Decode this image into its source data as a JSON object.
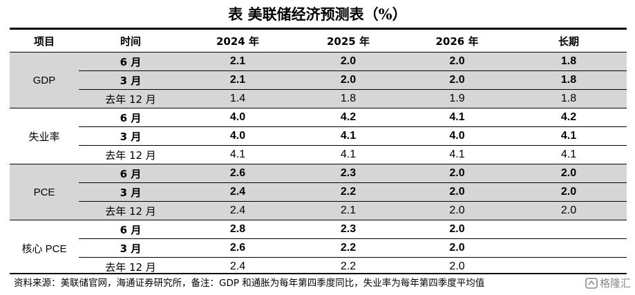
{
  "title": "表 美联储经济预测表（%）",
  "columns": [
    "项目",
    "时间",
    "2024 年",
    "2025 年",
    "2026 年",
    "长期"
  ],
  "groups": [
    {
      "name": "GDP",
      "shaded": true,
      "rows": [
        {
          "time": "6 月",
          "bold": true,
          "values": [
            "2.1",
            "2.0",
            "2.0",
            "1.8"
          ]
        },
        {
          "time": "3 月",
          "bold": true,
          "values": [
            "2.1",
            "2.0",
            "2.0",
            "1.8"
          ]
        },
        {
          "time": "去年 12 月",
          "bold": false,
          "values": [
            "1.4",
            "1.8",
            "1.9",
            "1.8"
          ]
        }
      ]
    },
    {
      "name": "失业率",
      "shaded": false,
      "rows": [
        {
          "time": "6 月",
          "bold": true,
          "values": [
            "4.0",
            "4.2",
            "4.1",
            "4.2"
          ]
        },
        {
          "time": "3 月",
          "bold": true,
          "values": [
            "4.0",
            "4.1",
            "4.0",
            "4.1"
          ]
        },
        {
          "time": "去年 12 月",
          "bold": false,
          "values": [
            "4.1",
            "4.1",
            "4.1",
            "4.1"
          ]
        }
      ]
    },
    {
      "name": "PCE",
      "shaded": true,
      "rows": [
        {
          "time": "6 月",
          "bold": true,
          "values": [
            "2.6",
            "2.3",
            "2.0",
            "2.0"
          ]
        },
        {
          "time": "3 月",
          "bold": true,
          "values": [
            "2.4",
            "2.2",
            "2.0",
            "2.0"
          ]
        },
        {
          "time": "去年 12 月",
          "bold": false,
          "values": [
            "2.4",
            "2.1",
            "2.0",
            "2.0"
          ]
        }
      ]
    },
    {
      "name": "核心 PCE",
      "shaded": false,
      "rows": [
        {
          "time": "6 月",
          "bold": true,
          "values": [
            "2.8",
            "2.3",
            "2.0",
            ""
          ]
        },
        {
          "time": "3 月",
          "bold": true,
          "values": [
            "2.6",
            "2.2",
            "2.0",
            ""
          ]
        },
        {
          "time": "去年 12 月",
          "bold": false,
          "values": [
            "2.4",
            "2.2",
            "2.0",
            ""
          ]
        }
      ]
    }
  ],
  "note": "资料来源：美联储官网，海通证券研究所，备注：GDP 和通胀为每年第四季度同比，失业率为每年第四季度平均值",
  "watermark": "格隆汇",
  "colors": {
    "shade": "#d6d6d6",
    "watermark": "#8a8a8a"
  }
}
